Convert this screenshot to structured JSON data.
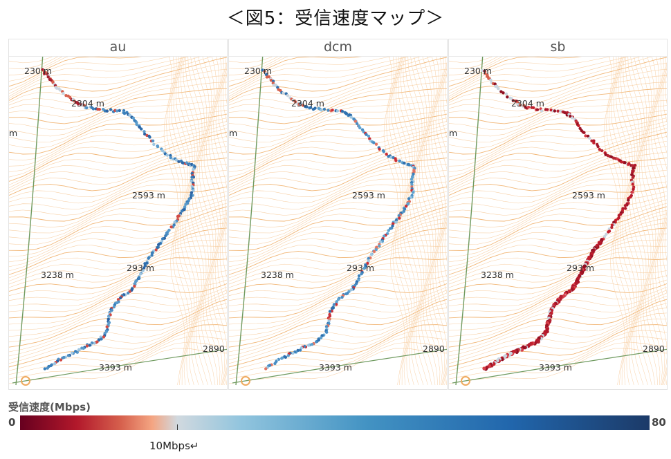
{
  "title": "＜図5：受信速度マップ＞",
  "panels": [
    {
      "name": "au",
      "route_colors": [
        "#4f8fc4",
        "#3a7fba",
        "#2f6fad",
        "#9ec5e0",
        "#2c63a3",
        "#d24a43",
        "#5a9bcb"
      ],
      "start_colors": [
        "#a61f2e",
        "#d6604d",
        "#c9d5df"
      ]
    },
    {
      "name": "dcm",
      "route_colors": [
        "#5fa2cf",
        "#3d82bc",
        "#9fc7e1",
        "#cc2e35",
        "#2f6fad",
        "#e07563",
        "#4a8ec4"
      ],
      "start_colors": [
        "#2f6fad",
        "#d6604d",
        "#c9d5df"
      ]
    },
    {
      "name": "sb",
      "route_colors": [
        "#b2182b",
        "#c41e2d",
        "#a01527",
        "#d6404a",
        "#8f1022",
        "#c9d5df",
        "#b52533"
      ],
      "start_colors": [
        "#8f1022",
        "#d6604d",
        "#c9d5df"
      ]
    }
  ],
  "map_labels": {
    "elev_top": "230 m",
    "elev_upper": "2304 m",
    "elev_mid": "2593 m",
    "elev_low": "293 m",
    "elev_left": "3238 m",
    "elev_bottom": "3393 m",
    "edge_right": "2890",
    "edge_left": "m"
  },
  "legend": {
    "title": "受信速度(Mbps)",
    "min": "0",
    "max": "80",
    "mark_label": "10Mbps↵",
    "mark_value": 10,
    "colors": [
      "#67001f",
      "#b2182b",
      "#d6604d",
      "#f4a582",
      "#d1d9df",
      "#92c5de",
      "#4393c3",
      "#2166ac",
      "#1c3a68"
    ]
  },
  "colors": {
    "contour": "#f6c48f",
    "contour_dark": "#efa95e",
    "road": "#6f9a5f"
  }
}
